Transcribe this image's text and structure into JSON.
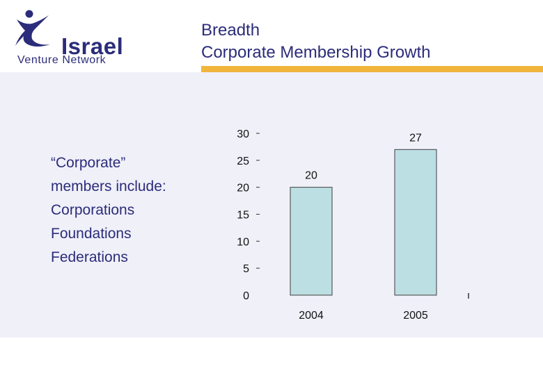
{
  "header": {
    "logo": {
      "wordmark": "Israel",
      "subtitle": "Venture Network"
    },
    "title_lines": [
      "Breadth",
      "Corporate Membership Growth"
    ],
    "accent_color": "#f0b53a",
    "brand_color": "#2b2c7a"
  },
  "sidebar_text": {
    "lines": [
      "“Corporate”",
      "members include:",
      "Corporations",
      "Foundations",
      "Federations"
    ]
  },
  "chart_data": {
    "type": "bar",
    "title": "Corporate Membership Growth",
    "categories": [
      "2004",
      "2005"
    ],
    "values": [
      20,
      27
    ],
    "data_labels": [
      "20",
      "27"
    ],
    "yticks": [
      0,
      5,
      10,
      15,
      20,
      25,
      30
    ],
    "ylim": [
      0,
      30
    ],
    "xlabel": "",
    "ylabel": "",
    "grid": false,
    "bar_color": "#bcdfe3",
    "bar_stroke": "#3d3d3d"
  }
}
